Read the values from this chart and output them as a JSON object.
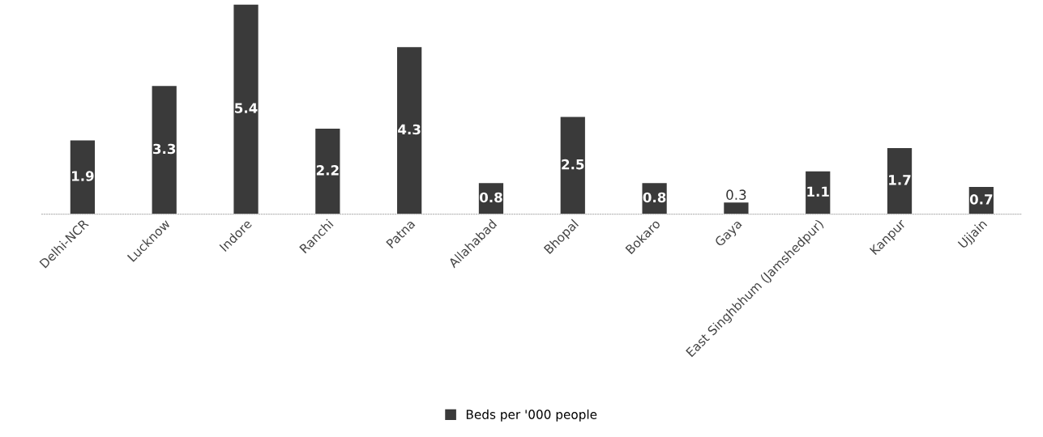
{
  "chart_data": {
    "type": "bar",
    "categories": [
      "Delhi-NCR",
      "Lucknow",
      "Indore",
      "Ranchi",
      "Patna",
      "Allahabad",
      "Bhopal",
      "Bokaro",
      "Gaya",
      "East Singhbhum (Jamshedpur)",
      "Kanpur",
      "Ujjain"
    ],
    "series": [
      {
        "name": "Beds per '000 people",
        "color": "#3a3a3a",
        "values": [
          1.9,
          3.3,
          5.4,
          2.2,
          4.3,
          0.8,
          2.5,
          0.8,
          0.3,
          1.1,
          1.7,
          0.7
        ]
      }
    ],
    "ylim": [
      0,
      5.4
    ],
    "data_labels": true,
    "legend": "bottom",
    "tick_labels": "x",
    "grid": false
  }
}
